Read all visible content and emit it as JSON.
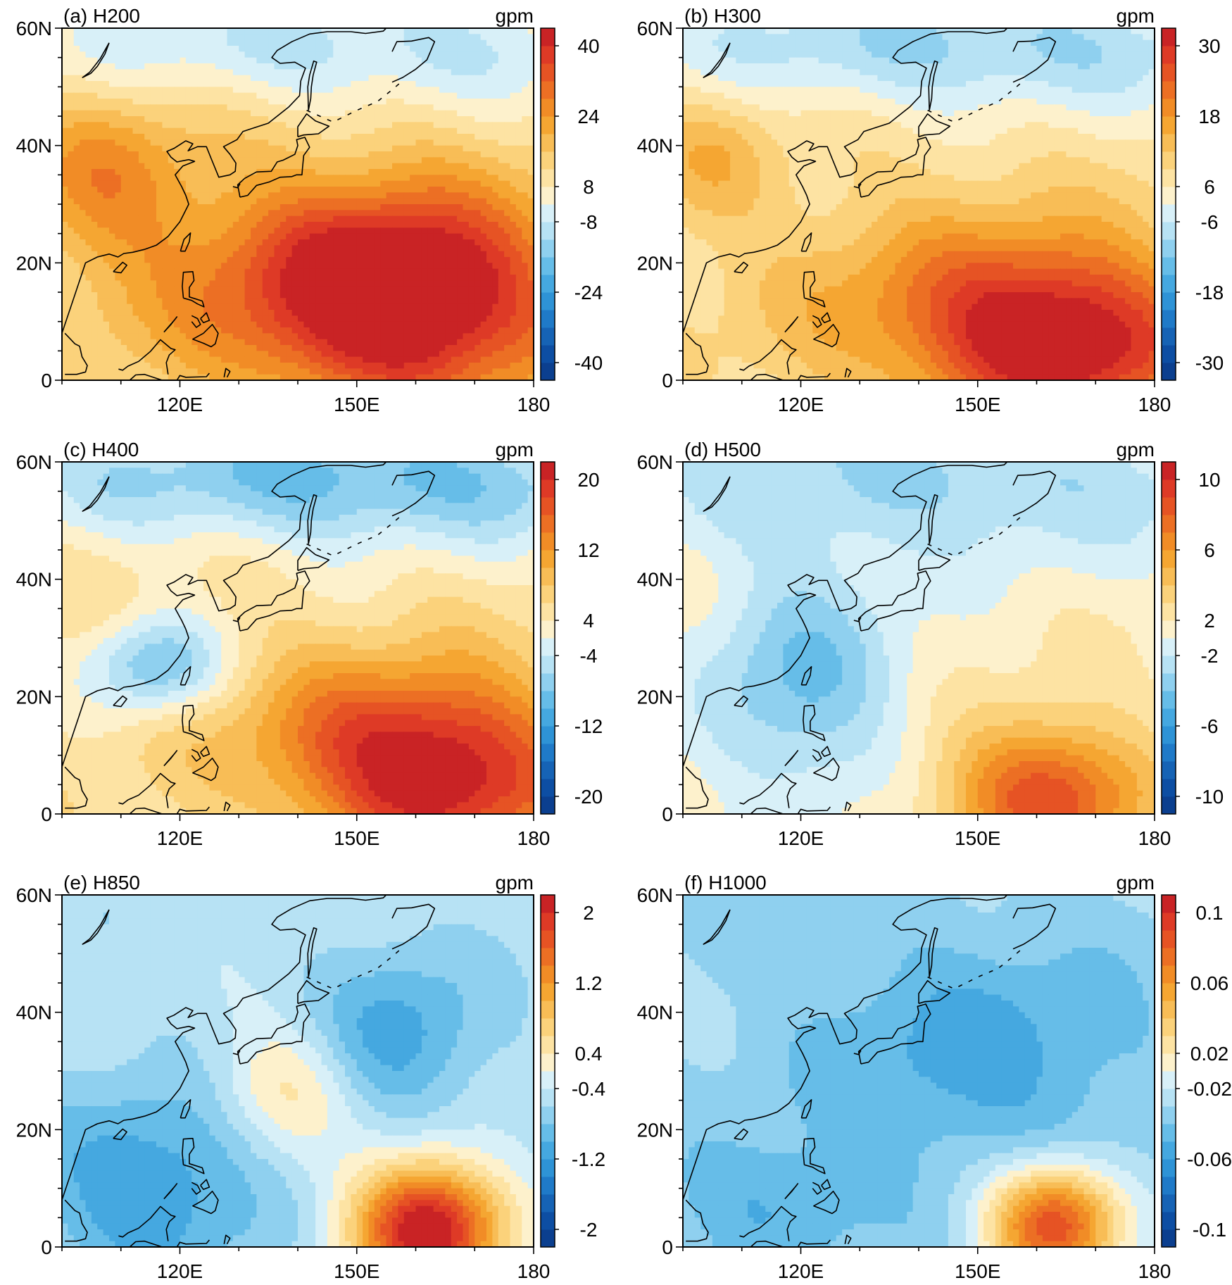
{
  "colors": {
    "fill_scale": [
      "#0b3f8f",
      "#0d4ea3",
      "#1663b5",
      "#1f7ac8",
      "#2e93d6",
      "#45a8e0",
      "#66bde8",
      "#8fd0ef",
      "#b7e2f4",
      "#d8f0f8",
      "#fdf1cc",
      "#fde3a3",
      "#fbd27b",
      "#f8bd56",
      "#f5a632",
      "#f18c26",
      "#ec6f24",
      "#e65324",
      "#de3a26",
      "#c92325"
    ],
    "coast": "#000000"
  },
  "chart_data": [
    {
      "type": "heatmap",
      "panel": "a",
      "title": "(a) H200",
      "unit": "gpm",
      "x_ticks": [
        "120E",
        "150E",
        "180"
      ],
      "y_ticks": [
        "0",
        "20N",
        "40N",
        "60N"
      ],
      "xlim": [
        100,
        180
      ],
      "ylim": [
        0,
        60
      ],
      "colorbar_ticks": [
        "40",
        "24",
        "8",
        "-8",
        "-24",
        "-40"
      ],
      "field": {
        "base": 8,
        "noise": 3,
        "levels": [
          -40,
          40
        ],
        "centers": [
          {
            "lon": 158,
            "lat": 14,
            "amp": 36,
            "sx": 18,
            "sy": 12
          },
          {
            "lon": 140,
            "lat": 18,
            "amp": 10,
            "sx": 25,
            "sy": 14
          },
          {
            "lon": 108,
            "lat": 35,
            "amp": 12,
            "sx": 10,
            "sy": 10
          },
          {
            "lon": 150,
            "lat": 57,
            "amp": -14,
            "sx": 40,
            "sy": 8
          }
        ]
      }
    },
    {
      "type": "heatmap",
      "panel": "b",
      "title": "(b) H300",
      "unit": "gpm",
      "x_ticks": [
        "120E",
        "150E",
        "180"
      ],
      "y_ticks": [
        "0",
        "20N",
        "40N",
        "60N"
      ],
      "xlim": [
        100,
        180
      ],
      "ylim": [
        0,
        60
      ],
      "colorbar_ticks": [
        "30",
        "18",
        "6",
        "-6",
        "-18",
        "-30"
      ],
      "field": {
        "base": 5,
        "noise": 2,
        "levels": [
          -30,
          30
        ],
        "centers": [
          {
            "lon": 165,
            "lat": 6,
            "amp": 23,
            "sx": 16,
            "sy": 10
          },
          {
            "lon": 148,
            "lat": 14,
            "amp": 10,
            "sx": 22,
            "sy": 12
          },
          {
            "lon": 105,
            "lat": 38,
            "amp": 6,
            "sx": 8,
            "sy": 8
          },
          {
            "lon": 150,
            "lat": 57,
            "amp": -12,
            "sx": 40,
            "sy": 8
          }
        ]
      }
    },
    {
      "type": "heatmap",
      "panel": "c",
      "title": "(c) H400",
      "unit": "gpm",
      "x_ticks": [
        "120E",
        "150E",
        "180"
      ],
      "y_ticks": [
        "0",
        "20N",
        "40N",
        "60N"
      ],
      "xlim": [
        100,
        180
      ],
      "ylim": [
        0,
        60
      ],
      "colorbar_ticks": [
        "20",
        "12",
        "4",
        "-4",
        "-12",
        "-20"
      ],
      "field": {
        "base": 3,
        "noise": 1.5,
        "levels": [
          -20,
          20
        ],
        "centers": [
          {
            "lon": 165,
            "lat": 6,
            "amp": 15,
            "sx": 16,
            "sy": 11
          },
          {
            "lon": 150,
            "lat": 14,
            "amp": 6,
            "sx": 18,
            "sy": 10
          },
          {
            "lon": 116,
            "lat": 25,
            "amp": -9,
            "sx": 8,
            "sy": 6
          },
          {
            "lon": 150,
            "lat": 57,
            "amp": -10,
            "sx": 40,
            "sy": 8
          }
        ]
      }
    },
    {
      "type": "heatmap",
      "panel": "d",
      "title": "(d) H500",
      "unit": "gpm",
      "x_ticks": [
        "120E",
        "150E",
        "180"
      ],
      "y_ticks": [
        "0",
        "20N",
        "40N",
        "60N"
      ],
      "xlim": [
        100,
        180
      ],
      "ylim": [
        0,
        60
      ],
      "colorbar_ticks": [
        "10",
        "6",
        "2",
        "-2",
        "-6",
        "-10"
      ],
      "field": {
        "base": 0.8,
        "noise": 0.6,
        "levels": [
          -10,
          10
        ],
        "centers": [
          {
            "lon": 162,
            "lat": 3,
            "amp": 7,
            "sx": 12,
            "sy": 9
          },
          {
            "lon": 120,
            "lat": 22,
            "amp": -4,
            "sx": 12,
            "sy": 14
          },
          {
            "lon": 145,
            "lat": 57,
            "amp": -3,
            "sx": 40,
            "sy": 10
          }
        ]
      }
    },
    {
      "type": "heatmap",
      "panel": "e",
      "title": "(e) H850",
      "unit": "gpm",
      "x_ticks": [
        "120E",
        "150E",
        "180"
      ],
      "y_ticks": [
        "0",
        "20N",
        "40N",
        "60N"
      ],
      "xlim": [
        100,
        180
      ],
      "ylim": [
        0,
        60
      ],
      "colorbar_ticks": [
        "2",
        "1.2",
        "0.4",
        "-0.4",
        "-1.2",
        "-2"
      ],
      "field": {
        "base": -0.3,
        "noise": 0.1,
        "levels": [
          -2,
          2
        ],
        "centers": [
          {
            "lon": 162,
            "lat": 3,
            "amp": 2.4,
            "sx": 9,
            "sy": 8
          },
          {
            "lon": 115,
            "lat": 10,
            "amp": -0.7,
            "sx": 14,
            "sy": 12
          },
          {
            "lon": 157,
            "lat": 36,
            "amp": -0.6,
            "sx": 10,
            "sy": 10
          },
          {
            "lon": 138,
            "lat": 27,
            "amp": 0.6,
            "sx": 8,
            "sy": 8
          }
        ]
      }
    },
    {
      "type": "heatmap",
      "panel": "f",
      "title": "(f) H1000",
      "unit": "gpm",
      "x_ticks": [
        "120E",
        "150E",
        "180"
      ],
      "y_ticks": [
        "0",
        "20N",
        "40N",
        "60N"
      ],
      "xlim": [
        100,
        180
      ],
      "ylim": [
        0,
        60
      ],
      "colorbar_ticks": [
        "0.1",
        "0.06",
        "0.02",
        "-0.02",
        "-0.06",
        "-0.1"
      ],
      "field": {
        "base": -0.02,
        "noise": 0.005,
        "levels": [
          -0.1,
          0.1
        ],
        "centers": [
          {
            "lon": 163,
            "lat": 4,
            "amp": 0.1,
            "sx": 8,
            "sy": 7
          },
          {
            "lon": 150,
            "lat": 32,
            "amp": -0.025,
            "sx": 20,
            "sy": 14
          },
          {
            "lon": 115,
            "lat": 7,
            "amp": -0.02,
            "sx": 12,
            "sy": 8
          }
        ]
      }
    }
  ]
}
